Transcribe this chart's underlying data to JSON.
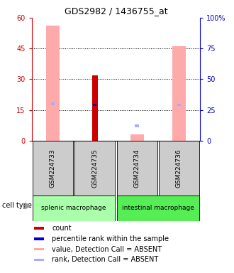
{
  "title": "GDS2982 / 1436755_at",
  "samples": [
    "GSM224733",
    "GSM224735",
    "GSM224734",
    "GSM224736"
  ],
  "cell_types": [
    {
      "label": "splenic macrophage",
      "samples": [
        0,
        1
      ],
      "color": "#aaffaa"
    },
    {
      "label": "intestinal macrophage",
      "samples": [
        2,
        3
      ],
      "color": "#55ee55"
    }
  ],
  "ylim_left": [
    0,
    60
  ],
  "ylim_right": [
    0,
    100
  ],
  "yticks_left": [
    0,
    15,
    30,
    45,
    60
  ],
  "yticks_right": [
    0,
    25,
    50,
    75,
    100
  ],
  "yticklabels_right": [
    "0",
    "25",
    "50",
    "75",
    "100%"
  ],
  "bar_data": [
    {
      "sample_idx": 0,
      "count": null,
      "percentile_rank": null,
      "value_absent": 56,
      "rank_absent": 30
    },
    {
      "sample_idx": 1,
      "count": 32,
      "percentile_rank": 29,
      "value_absent": null,
      "rank_absent": null
    },
    {
      "sample_idx": 2,
      "count": null,
      "percentile_rank": null,
      "value_absent": 3,
      "rank_absent": 12
    },
    {
      "sample_idx": 3,
      "count": null,
      "percentile_rank": null,
      "value_absent": 46,
      "rank_absent": 29
    }
  ],
  "colors": {
    "count": "#cc0000",
    "percentile_rank": "#0000cc",
    "value_absent": "#ffaaaa",
    "rank_absent": "#aaaaff",
    "left_axis": "#cc0000",
    "right_axis": "#0000cc",
    "cell_type_splenic": "#aaffaa",
    "cell_type_intestinal": "#55ee55"
  },
  "bw_value": 0.32,
  "bw_count": 0.13,
  "bw_rank_sq": 0.09,
  "label_fontsize": 7,
  "title_fontsize": 9,
  "tick_fontsize": 7,
  "legend_fontsize": 7,
  "sample_label_fontsize": 6.5,
  "cell_type_fontsize": 6.5
}
